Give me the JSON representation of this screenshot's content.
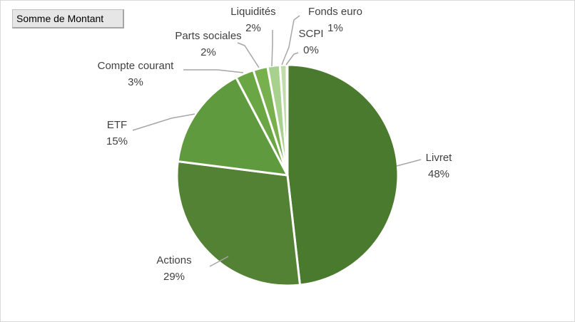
{
  "field_button": {
    "label": "Somme de Montant"
  },
  "chart_data": {
    "type": "pie",
    "title": "",
    "start_angle_deg": 0,
    "direction": "clockwise",
    "slices": [
      {
        "name": "Livret",
        "percent_label": "48%",
        "value": 48.2,
        "color": "#4a7a2e"
      },
      {
        "name": "Actions",
        "percent_label": "29%",
        "value": 28.8,
        "color": "#548235"
      },
      {
        "name": "ETF",
        "percent_label": "15%",
        "value": 15.3,
        "color": "#609a3e"
      },
      {
        "name": "Compte courant",
        "percent_label": "3%",
        "value": 2.7,
        "color": "#6ba644"
      },
      {
        "name": "Parts sociales",
        "percent_label": "2%",
        "value": 2.1,
        "color": "#78b04e"
      },
      {
        "name": "Liquidités",
        "percent_label": "2%",
        "value": 1.8,
        "color": "#a9d18e"
      },
      {
        "name": "Fonds euro",
        "percent_label": "1%",
        "value": 1.0,
        "color": "#bfdcaa"
      },
      {
        "name": "SCPI",
        "percent_label": "0%",
        "value": 0.1,
        "color": "#d4e8c4"
      }
    ]
  }
}
